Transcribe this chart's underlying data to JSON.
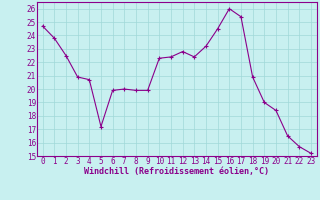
{
  "x": [
    0,
    1,
    2,
    3,
    4,
    5,
    6,
    7,
    8,
    9,
    10,
    11,
    12,
    13,
    14,
    15,
    16,
    17,
    18,
    19,
    20,
    21,
    22,
    23
  ],
  "y": [
    24.7,
    23.8,
    22.5,
    20.9,
    20.7,
    17.2,
    19.9,
    20.0,
    19.9,
    19.9,
    22.3,
    22.4,
    22.8,
    22.4,
    23.2,
    24.5,
    26.0,
    25.4,
    20.9,
    19.0,
    18.4,
    16.5,
    15.7,
    15.2
  ],
  "line_color": "#8b008b",
  "marker": "+",
  "markersize": 3,
  "linewidth": 0.8,
  "xlabel": "Windchill (Refroidissement éolien,°C)",
  "xlim": [
    -0.5,
    23.5
  ],
  "ylim": [
    15,
    26.5
  ],
  "yticks": [
    15,
    16,
    17,
    18,
    19,
    20,
    21,
    22,
    23,
    24,
    25,
    26
  ],
  "xticks": [
    0,
    1,
    2,
    3,
    4,
    5,
    6,
    7,
    8,
    9,
    10,
    11,
    12,
    13,
    14,
    15,
    16,
    17,
    18,
    19,
    20,
    21,
    22,
    23
  ],
  "bg_color": "#c8f0f0",
  "grid_color": "#a0d8d8",
  "xlabel_fontsize": 6,
  "tick_fontsize": 5.5
}
